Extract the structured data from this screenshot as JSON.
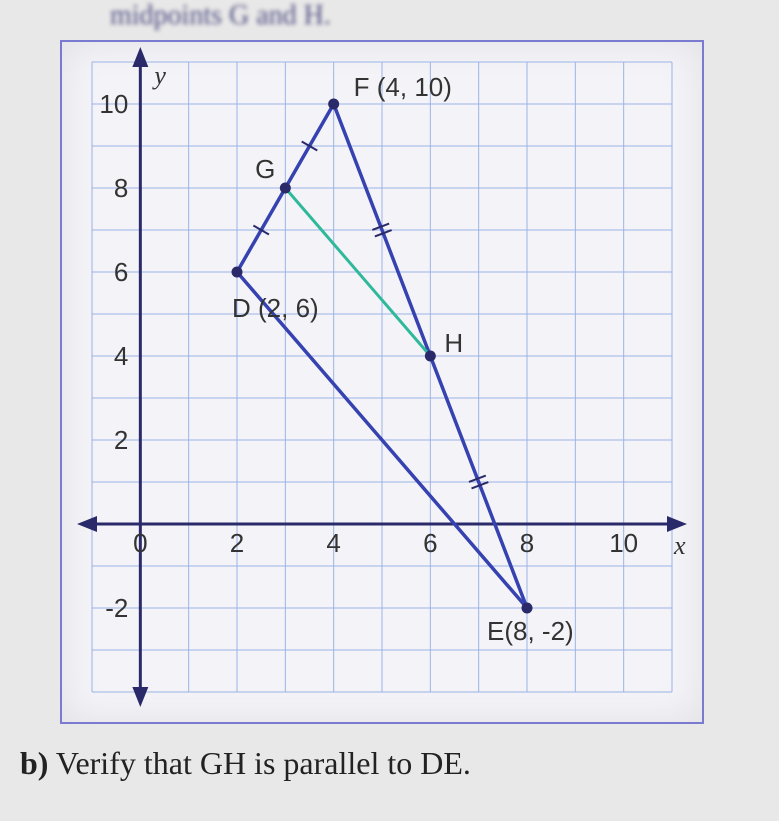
{
  "top_text": "midpoints G and H.",
  "question": {
    "label": "b)",
    "text": "Verify that GH is parallel to DE."
  },
  "chart": {
    "type": "coordinate-plane",
    "background_color": "#f4f4f8",
    "grid_color": "#9bb3e6",
    "axis_color": "#2a2a6a",
    "frame_color": "#7a7ad0",
    "shape_color": "#3542b0",
    "midsegment_color": "#2fb99a",
    "x_axis": {
      "label": "x",
      "min": -1,
      "max": 11,
      "tick_start": 0,
      "tick_step": 2,
      "tick_end": 10
    },
    "y_axis": {
      "label": "y",
      "min": -4,
      "max": 11,
      "tick_start": -2,
      "tick_step": 2,
      "tick_end": 10
    },
    "points": {
      "D": {
        "x": 2,
        "y": 6,
        "label": "D (2, 6)"
      },
      "F": {
        "x": 4,
        "y": 10,
        "label": "F (4, 10)"
      },
      "E": {
        "x": 8,
        "y": -2,
        "label": "E(8, -2)"
      },
      "G": {
        "x": 3,
        "y": 8,
        "label": "G"
      },
      "H": {
        "x": 6,
        "y": 4,
        "label": "H"
      }
    },
    "triangle_edges": [
      {
        "from": "D",
        "to": "F",
        "marks": 1
      },
      {
        "from": "F",
        "to": "E",
        "marks": 2
      },
      {
        "from": "E",
        "to": "D",
        "marks": 0
      }
    ],
    "midsegment": {
      "from": "G",
      "to": "H"
    }
  }
}
